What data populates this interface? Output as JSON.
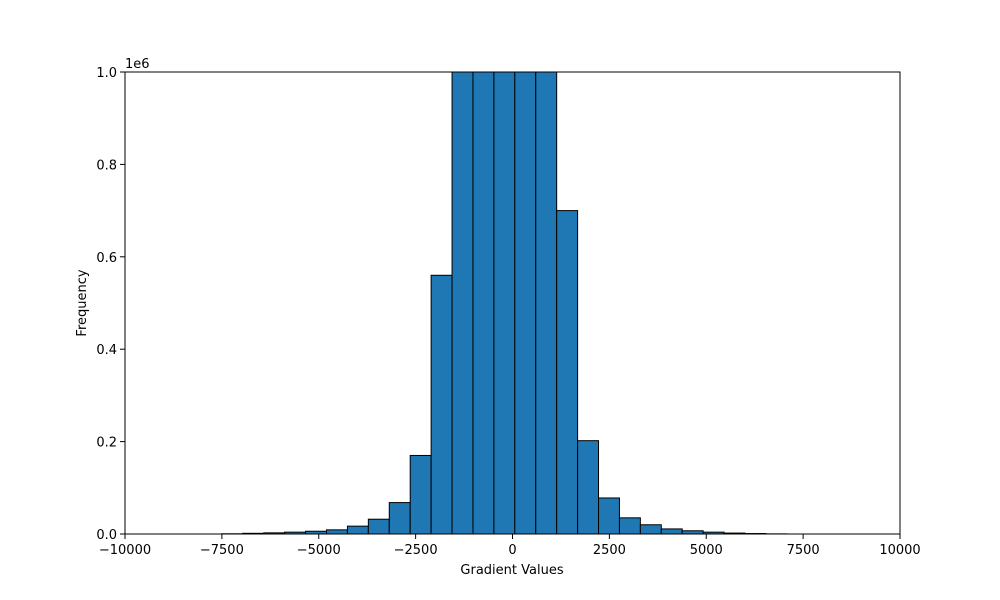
{
  "chart_data": {
    "type": "bar",
    "title": "",
    "xlabel": "Gradient Values",
    "ylabel": "Frequency",
    "scale_label": "1e6",
    "xlim": [
      -10000,
      10000
    ],
    "ylim": [
      0,
      1000000
    ],
    "x_ticks": [
      -10000,
      -7500,
      -5000,
      -2500,
      0,
      2500,
      5000,
      7500,
      10000
    ],
    "x_tick_labels": [
      "−10000",
      "−7500",
      "−5000",
      "−2500",
      "0",
      "2500",
      "5000",
      "7500",
      "10000"
    ],
    "y_ticks": [
      0,
      200000,
      400000,
      600000,
      800000,
      1000000
    ],
    "y_tick_labels": [
      "0.0",
      "0.2",
      "0.4",
      "0.6",
      "0.8",
      "1.0"
    ],
    "grid": false,
    "bar_color": "#1f77b4",
    "edge_color": "#000000",
    "bin_edges": [
      -7500,
      -6960,
      -6420,
      -5880,
      -5340,
      -4800,
      -4260,
      -3720,
      -3180,
      -2640,
      -2100,
      -1560,
      -1020,
      -480,
      60,
      600,
      1140,
      1680,
      2220,
      2760,
      3300,
      3840,
      4380,
      4920,
      5460,
      6000,
      6540,
      7080
    ],
    "values": [
      500,
      1500,
      2500,
      4000,
      6000,
      9000,
      17000,
      32000,
      68000,
      170000,
      560000,
      1000000,
      1000000,
      1000000,
      1000000,
      1000000,
      700000,
      202000,
      78000,
      35000,
      20000,
      11000,
      7000,
      4000,
      2000,
      1000,
      300
    ]
  }
}
